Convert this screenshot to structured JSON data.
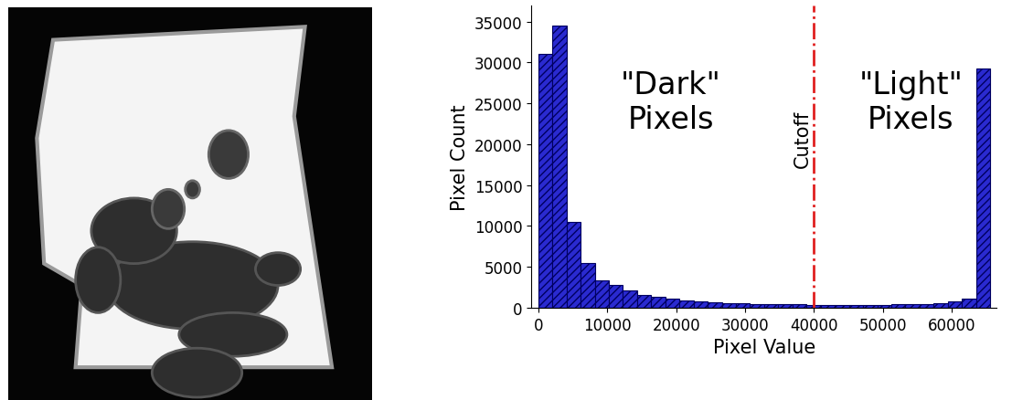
{
  "chart_data": {
    "type": "histogram",
    "xlabel": "Pixel Value",
    "ylabel": "Pixel Count",
    "bins": [
      0,
      2048,
      4096,
      6144,
      8192,
      10240,
      12288,
      14336,
      16384,
      18432,
      20480,
      22528,
      24576,
      26624,
      28672,
      30720,
      32768,
      34816,
      36864,
      38912,
      40960,
      43008,
      45056,
      47104,
      49152,
      51200,
      53248,
      55296,
      57344,
      59392,
      61440,
      63488,
      65536
    ],
    "counts": [
      31000,
      34500,
      10500,
      5500,
      3300,
      2800,
      2100,
      1600,
      1300,
      1100,
      900,
      800,
      700,
      600,
      550,
      500,
      450,
      400,
      400,
      350,
      350,
      300,
      300,
      300,
      350,
      400,
      450,
      500,
      600,
      800,
      1100,
      29300
    ],
    "color": "#2a2ad0",
    "xlim": [
      -1000,
      66500
    ],
    "ylim": [
      0,
      37000
    ],
    "xticks": [
      0,
      10000,
      20000,
      30000,
      40000,
      50000,
      60000
    ],
    "yticks": [
      0,
      5000,
      10000,
      15000,
      20000,
      25000,
      30000,
      35000
    ],
    "cutoff": 40000,
    "cutoff_label": "Cutoff",
    "cutoff_color": "#e02020",
    "annotations": [
      "\"Dark\"\nPixels",
      "\"Light\"\nPixels"
    ]
  }
}
